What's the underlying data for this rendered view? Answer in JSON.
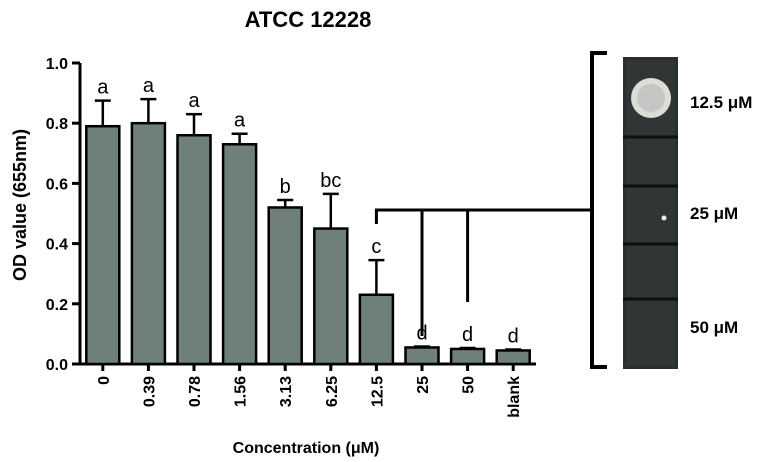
{
  "chart_data": {
    "type": "bar",
    "title": "ATCC 12228",
    "xlabel": "Concentration (μM)",
    "ylabel": "OD value (655nm)",
    "ylim": [
      0,
      1.0
    ],
    "yticks": [
      "0.0",
      "0.2",
      "0.4",
      "0.6",
      "0.8",
      "1.0"
    ],
    "categories": [
      "0",
      "0.39",
      "0.78",
      "1.56",
      "3.13",
      "6.25",
      "12.5",
      "25",
      "50",
      "blank"
    ],
    "values": [
      0.79,
      0.8,
      0.76,
      0.73,
      0.52,
      0.45,
      0.23,
      0.055,
      0.05,
      0.045
    ],
    "errors": [
      0.085,
      0.08,
      0.07,
      0.035,
      0.025,
      0.115,
      0.115,
      0.003,
      0.003,
      0.003
    ],
    "significance": [
      "a",
      "a",
      "a",
      "a",
      "b",
      "bc",
      "c",
      "d",
      "d",
      "d"
    ],
    "bar_color": "#6f7f7b",
    "grid": false
  },
  "plate_image": {
    "labels": [
      "12.5 μM",
      "25 μM",
      "50 μM"
    ]
  }
}
